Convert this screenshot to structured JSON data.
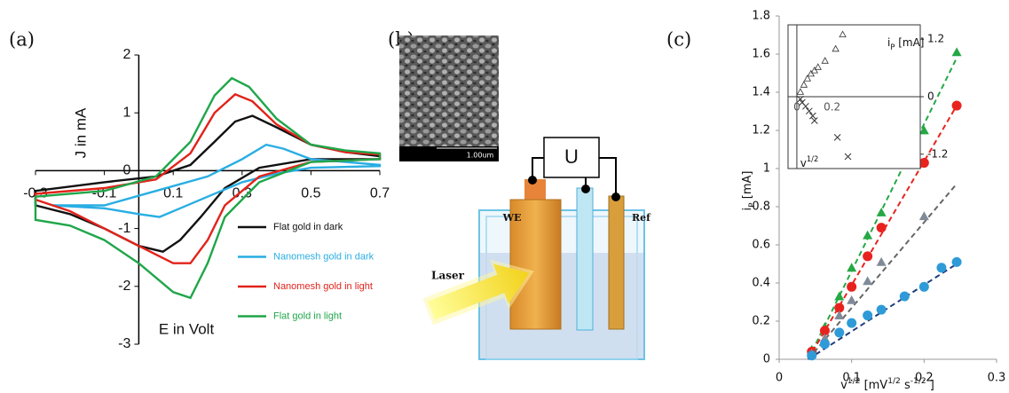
{
  "panel_labels": [
    "(a)",
    "(b)",
    "(c)"
  ],
  "diagram": {
    "scale_bar": "1.00um",
    "source": "U",
    "working_electrode": "WE",
    "reference": "Ref",
    "laser": "Laser"
  },
  "chart_data": [
    {
      "type": "line",
      "xlabel": "E in Volt",
      "ylabel": "J in mA",
      "xlim": [
        -0.3,
        0.7
      ],
      "ylim": [
        -3,
        2
      ],
      "xticks": [
        -0.3,
        -0.1,
        0.1,
        0.3,
        0.5,
        0.7
      ],
      "yticks": [
        -3,
        -2,
        -1,
        0,
        1,
        2
      ],
      "legend": "lower right",
      "series": [
        {
          "name": "Flat gold in dark",
          "color": "#111111",
          "x": [
            -0.3,
            -0.1,
            0.05,
            0.15,
            0.22,
            0.28,
            0.33,
            0.4,
            0.5,
            0.6,
            0.7,
            0.7,
            0.5,
            0.35,
            0.25,
            0.18,
            0.12,
            0.07,
            0.0,
            -0.1,
            -0.2,
            -0.3
          ],
          "values": [
            -0.35,
            -0.2,
            -0.1,
            0.1,
            0.5,
            0.85,
            0.95,
            0.75,
            0.45,
            0.32,
            0.25,
            0.2,
            0.2,
            0.05,
            -0.3,
            -0.8,
            -1.2,
            -1.4,
            -1.3,
            -1.0,
            -0.75,
            -0.6
          ]
        },
        {
          "name": "Nanomesh gold in dark",
          "color": "#29aee3",
          "x": [
            -0.25,
            -0.1,
            0.05,
            0.2,
            0.3,
            0.37,
            0.42,
            0.5,
            0.6,
            0.7,
            0.7,
            0.5,
            0.4,
            0.3,
            0.2,
            0.12,
            0.06,
            0.0,
            -0.1,
            -0.25
          ],
          "values": [
            -0.6,
            -0.6,
            -0.35,
            -0.1,
            0.2,
            0.45,
            0.38,
            0.2,
            0.15,
            0.1,
            0.08,
            0.05,
            -0.05,
            -0.2,
            -0.45,
            -0.65,
            -0.8,
            -0.75,
            -0.65,
            -0.6
          ]
        },
        {
          "name": "Nanomesh gold in light",
          "color": "#e2231a",
          "x": [
            -0.3,
            -0.1,
            0.05,
            0.15,
            0.22,
            0.28,
            0.33,
            0.4,
            0.5,
            0.6,
            0.7,
            0.7,
            0.5,
            0.35,
            0.25,
            0.2,
            0.15,
            0.1,
            0.0,
            -0.1,
            -0.2,
            -0.3
          ],
          "values": [
            -0.4,
            -0.3,
            -0.15,
            0.3,
            1.0,
            1.32,
            1.2,
            0.8,
            0.45,
            0.32,
            0.28,
            0.2,
            0.15,
            -0.1,
            -0.6,
            -1.2,
            -1.6,
            -1.6,
            -1.3,
            -1.0,
            -0.7,
            -0.5
          ]
        },
        {
          "name": "Flat gold in light",
          "color": "#1fa64a",
          "x": [
            -0.3,
            -0.1,
            0.05,
            0.15,
            0.22,
            0.27,
            0.32,
            0.4,
            0.5,
            0.6,
            0.7,
            0.7,
            0.5,
            0.35,
            0.25,
            0.2,
            0.15,
            0.1,
            0.0,
            -0.1,
            -0.2,
            -0.3
          ],
          "values": [
            -0.45,
            -0.35,
            -0.1,
            0.5,
            1.3,
            1.6,
            1.45,
            0.9,
            0.45,
            0.35,
            0.3,
            0.2,
            0.15,
            -0.2,
            -0.8,
            -1.6,
            -2.2,
            -2.1,
            -1.6,
            -1.2,
            -0.95,
            -0.85
          ]
        }
      ]
    },
    {
      "type": "scatter",
      "xlabel_parts": [
        {
          "text": "v"
        },
        {
          "text": "1/2",
          "shift": "sup"
        },
        {
          "text": "  [mV"
        },
        {
          "text": "1/2",
          "shift": "sup"
        },
        {
          "text": " s"
        },
        {
          "text": "-1/2",
          "shift": "sup"
        },
        {
          "text": " ]"
        }
      ],
      "ylabel_parts": [
        {
          "text": "i"
        },
        {
          "text": "P",
          "shift": "sub"
        },
        {
          "text": " [mA]"
        }
      ],
      "xlim": [
        0,
        0.3
      ],
      "ylim": [
        0,
        1.8
      ],
      "xticks": [
        0,
        0.1,
        0.2,
        0.3
      ],
      "yticks": [
        0,
        0.2,
        0.4,
        0.6,
        0.8,
        1,
        1.2,
        1.4,
        1.6,
        1.8
      ],
      "series": [
        {
          "color": "#25a845",
          "marker": "triangle",
          "fit_color": "#25a845",
          "x": [
            0.045,
            0.063,
            0.083,
            0.1,
            0.122,
            0.141,
            0.2,
            0.245
          ],
          "values": [
            0.05,
            0.17,
            0.33,
            0.48,
            0.65,
            0.77,
            1.2,
            1.61
          ],
          "fit_x": [
            0.04,
            0.245
          ],
          "fit_y": [
            0.0,
            1.58
          ]
        },
        {
          "color": "#e8231f",
          "marker": "circle",
          "fit_color": "#e8231f",
          "x": [
            0.045,
            0.063,
            0.083,
            0.1,
            0.122,
            0.141,
            0.2,
            0.245
          ],
          "values": [
            0.04,
            0.15,
            0.27,
            0.38,
            0.54,
            0.69,
            1.03,
            1.33
          ],
          "fit_x": [
            0.04,
            0.245
          ],
          "fit_y": [
            0.0,
            1.33
          ]
        },
        {
          "color": "#808a99",
          "marker": "triangle",
          "fit_color": "#666666",
          "x": [
            0.045,
            0.063,
            0.083,
            0.1,
            0.122,
            0.141,
            0.2
          ],
          "values": [
            0.03,
            0.11,
            0.23,
            0.31,
            0.41,
            0.51,
            0.75
          ],
          "fit_x": [
            0.04,
            0.245
          ],
          "fit_y": [
            0.0,
            0.92
          ]
        },
        {
          "color": "#2e9bd8",
          "marker": "circle",
          "fit_color": "#1f3d7a",
          "x": [
            0.045,
            0.063,
            0.083,
            0.1,
            0.122,
            0.141,
            0.173,
            0.2,
            0.224,
            0.245
          ],
          "values": [
            0.02,
            0.08,
            0.14,
            0.19,
            0.23,
            0.26,
            0.33,
            0.38,
            0.48,
            0.51
          ],
          "fit_x": [
            0.04,
            0.245
          ],
          "fit_y": [
            0.0,
            0.5
          ]
        }
      ]
    },
    {
      "type": "scatter",
      "inset": true,
      "xlabel_parts": [
        {
          "text": "v"
        },
        {
          "text": "1/2",
          "shift": "sup"
        }
      ],
      "ylabel_parts": [
        {
          "text": "i"
        },
        {
          "text": "P",
          "shift": "sub"
        },
        {
          "text": " [mA]"
        }
      ],
      "xlim": [
        -0.05,
        0.7
      ],
      "ylim": [
        -1.5,
        1.5
      ],
      "xticks": [
        0,
        0.2
      ],
      "yticks": [
        1.2,
        0,
        -1.2
      ],
      "series": [
        {
          "color": "#333333",
          "marker": "triangle-open",
          "x": [
            0.02,
            0.04,
            0.06,
            0.08,
            0.1,
            0.12,
            0.16,
            0.22,
            0.26
          ],
          "values": [
            0.1,
            0.25,
            0.38,
            0.48,
            0.55,
            0.62,
            0.75,
            1.0,
            1.3
          ]
        },
        {
          "color": "#333333",
          "marker": "cross",
          "x": [
            0.02,
            0.03,
            0.05,
            0.07,
            0.09,
            0.1,
            0.23,
            0.29
          ],
          "values": [
            -0.05,
            -0.12,
            -0.2,
            -0.3,
            -0.4,
            -0.5,
            -0.85,
            -1.25
          ]
        }
      ]
    }
  ]
}
